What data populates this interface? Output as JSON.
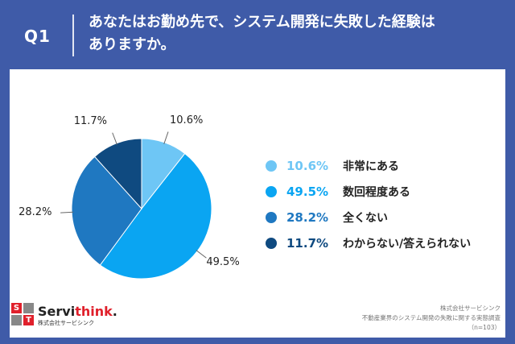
{
  "header": {
    "q_label": "Q1",
    "title_line1": "あなたはお勤め先で、システム開発に失敗した経験は",
    "title_line2": "ありますか。"
  },
  "chart_data": {
    "type": "pie",
    "categories": [
      "非常にある",
      "数回程度ある",
      "全くない",
      "わからない/答えられない"
    ],
    "values": [
      10.6,
      49.5,
      28.2,
      11.7
    ],
    "value_labels": [
      "10.6%",
      "49.5%",
      "28.2%",
      "11.7%"
    ],
    "colors": [
      "#6ec6f5",
      "#0aa5f2",
      "#1f78c1",
      "#0f4a80"
    ],
    "legend_position": "right"
  },
  "logo": {
    "letters": [
      "S",
      "",
      "",
      "T"
    ],
    "name_main": "Servi",
    "name_accent": "think",
    "name_dot": ".",
    "sub": "株式会社サービシンク"
  },
  "footer": {
    "line1": "株式会社サービシンク",
    "line2": "不動産業界のシステム開発の失敗に関する実態調査",
    "line3": "（n=103）"
  }
}
